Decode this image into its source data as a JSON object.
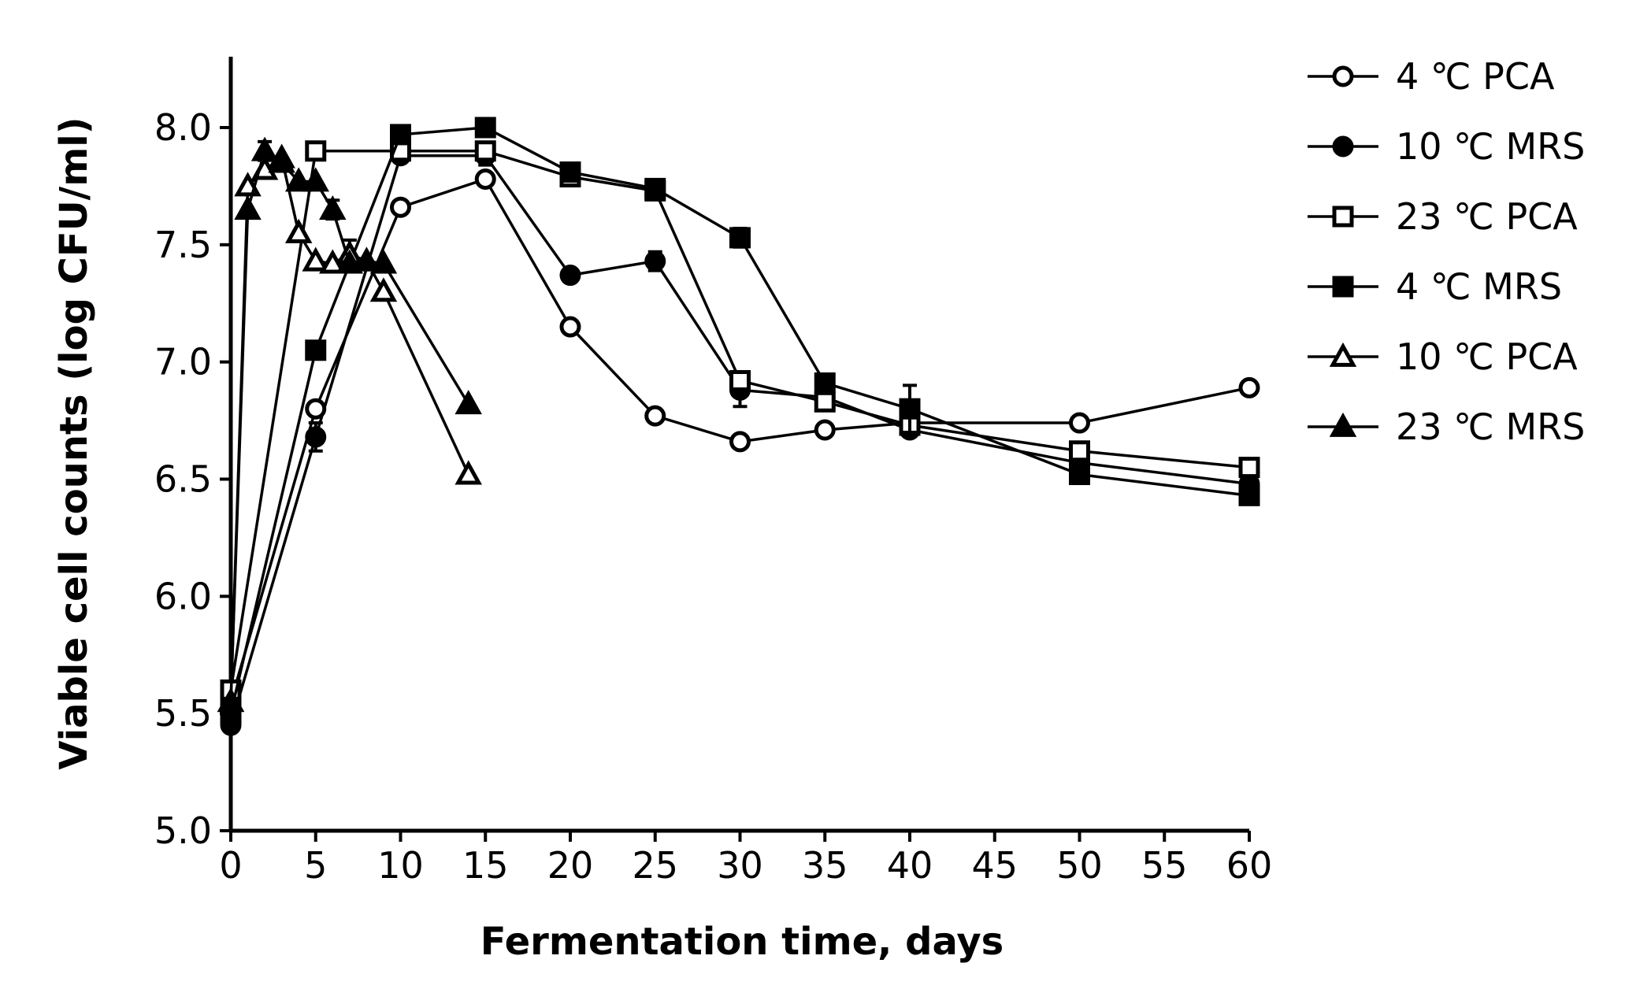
{
  "chart_data": {
    "type": "line",
    "title": "",
    "xlabel": "Fermentation time, days",
    "ylabel": "Viable cell counts (log CFU/ml)",
    "xlim": [
      0,
      60
    ],
    "ylim": [
      5.0,
      8.3
    ],
    "xticks": [
      0,
      5,
      10,
      15,
      20,
      25,
      30,
      35,
      40,
      45,
      50,
      55,
      60
    ],
    "xtick_labels": [
      "0",
      "5",
      "10",
      "15",
      "20",
      "25",
      "30",
      "35",
      "40",
      "45",
      "50",
      "55",
      "60"
    ],
    "yticks": [
      5.0,
      5.5,
      6.0,
      6.5,
      7.0,
      7.5,
      8.0
    ],
    "ytick_labels": [
      "5.0",
      "5.5",
      "6.0",
      "6.5",
      "7.0",
      "7.5",
      "8.0"
    ],
    "grid": false,
    "legend_position": "right",
    "series": [
      {
        "name": "4 ℃ PCA",
        "marker": "circle-open",
        "x": [
          0,
          5,
          10,
          15,
          20,
          25,
          30,
          35,
          40,
          50,
          60
        ],
        "y": [
          5.55,
          6.8,
          7.66,
          7.78,
          7.15,
          6.77,
          6.66,
          6.71,
          6.74,
          6.74,
          6.89
        ],
        "err": [
          0,
          0,
          0,
          0,
          0,
          0,
          0,
          0,
          0,
          0,
          0
        ]
      },
      {
        "name": "10 ℃ MRS",
        "marker": "circle-filled",
        "x": [
          0,
          5,
          10,
          15,
          20,
          25,
          30,
          35,
          40,
          50,
          60
        ],
        "y": [
          5.45,
          6.68,
          7.88,
          7.88,
          7.37,
          7.43,
          6.88,
          6.85,
          6.71,
          6.57,
          6.48
        ],
        "err": [
          0,
          0.06,
          0,
          0.04,
          0,
          0.04,
          0.07,
          0,
          0,
          0,
          0
        ]
      },
      {
        "name": "23 ℃ PCA",
        "marker": "square-open",
        "x": [
          0,
          5,
          10,
          15,
          20,
          25,
          30,
          35,
          40,
          50,
          60
        ],
        "y": [
          5.6,
          7.9,
          7.9,
          7.9,
          7.79,
          7.73,
          6.92,
          6.83,
          6.73,
          6.62,
          6.55
        ],
        "err": [
          0,
          0,
          0,
          0,
          0,
          0,
          0,
          0,
          0,
          0,
          0
        ]
      },
      {
        "name": "4 ℃ MRS",
        "marker": "square-filled",
        "x": [
          0,
          5,
          10,
          15,
          20,
          25,
          30,
          35,
          40,
          50,
          60
        ],
        "y": [
          5.5,
          7.05,
          7.97,
          8.0,
          7.81,
          7.74,
          7.53,
          6.91,
          6.8,
          6.52,
          6.43
        ],
        "err": [
          0,
          0,
          0,
          0,
          0,
          0,
          0.04,
          0,
          0.1,
          0,
          0
        ]
      },
      {
        "name": "10 ℃ PCA",
        "marker": "triangle-open",
        "x": [
          0,
          1,
          2,
          3,
          4,
          5,
          6,
          7,
          8,
          9,
          14
        ],
        "y": [
          5.55,
          7.75,
          7.82,
          7.87,
          7.55,
          7.43,
          7.42,
          7.46,
          7.43,
          7.3,
          6.52
        ],
        "err": [
          0,
          0,
          0,
          0,
          0,
          0,
          0,
          0.06,
          0,
          0,
          0
        ]
      },
      {
        "name": "23 ℃ MRS",
        "marker": "triangle-filled",
        "x": [
          0,
          1,
          2,
          3,
          4,
          5,
          6,
          7,
          8,
          9,
          14
        ],
        "y": [
          5.55,
          7.65,
          7.9,
          7.85,
          7.77,
          7.77,
          7.65,
          7.42,
          7.43,
          7.42,
          6.82
        ],
        "err": [
          0,
          0,
          0.04,
          0,
          0,
          0,
          0.04,
          0,
          0,
          0,
          0
        ]
      }
    ]
  }
}
